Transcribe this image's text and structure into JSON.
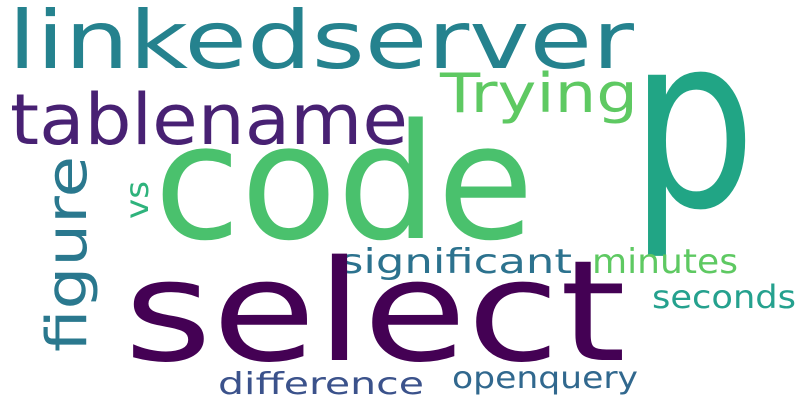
{
  "words": [
    {
      "text": "linkedserver",
      "color": "#25828e"
    },
    {
      "text": "tablename",
      "color": "#482173"
    },
    {
      "text": "Trying",
      "color": "#5ec962"
    },
    {
      "text": "p",
      "color": "#21a585"
    },
    {
      "text": "code",
      "color": "#4ac16d"
    },
    {
      "text": "vs",
      "color": "#2eb37c"
    },
    {
      "text": "figure",
      "color": "#2a788e"
    },
    {
      "text": "significant",
      "color": "#2c728e"
    },
    {
      "text": "minutes",
      "color": "#5ec962"
    },
    {
      "text": "select",
      "color": "#440154"
    },
    {
      "text": "seconds",
      "color": "#25a18e"
    },
    {
      "text": "difference",
      "color": "#3b528b"
    },
    {
      "text": "openquery",
      "color": "#31688e"
    }
  ]
}
